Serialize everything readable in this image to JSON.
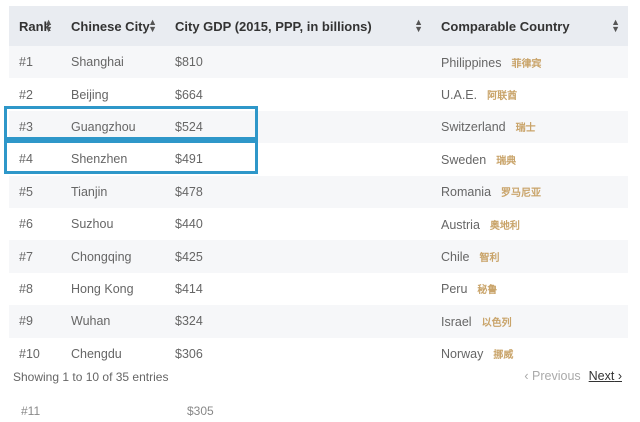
{
  "headers": {
    "rank": "Rank",
    "city": "Chinese City",
    "gdp": "City GDP (2015, PPP, in billions)",
    "country": "Comparable Country"
  },
  "rows": [
    {
      "rank": "#1",
      "city": "Shanghai",
      "gdp": "$810",
      "country": "Philippines",
      "country_cn": "菲律宾"
    },
    {
      "rank": "#2",
      "city": "Beijing",
      "gdp": "$664",
      "country": "U.A.E.",
      "country_cn": "阿联酋"
    },
    {
      "rank": "#3",
      "city": "Guangzhou",
      "gdp": "$524",
      "country": "Switzerland",
      "country_cn": "瑞士"
    },
    {
      "rank": "#4",
      "city": "Shenzhen",
      "gdp": "$491",
      "country": "Sweden",
      "country_cn": "瑞典"
    },
    {
      "rank": "#5",
      "city": "Tianjin",
      "gdp": "$478",
      "country": "Romania",
      "country_cn": "罗马尼亚"
    },
    {
      "rank": "#6",
      "city": "Suzhou",
      "gdp": "$440",
      "country": "Austria",
      "country_cn": "奥地利"
    },
    {
      "rank": "#7",
      "city": "Chongqing",
      "gdp": "$425",
      "country": "Chile",
      "country_cn": "智利"
    },
    {
      "rank": "#8",
      "city": "Hong Kong",
      "gdp": "$414",
      "country": "Peru",
      "country_cn": "秘鲁"
    },
    {
      "rank": "#9",
      "city": "Wuhan",
      "gdp": "$324",
      "country": "Israel",
      "country_cn": "以色列"
    },
    {
      "rank": "#10",
      "city": "Chengdu",
      "gdp": "$306",
      "country": "Norway",
      "country_cn": "挪威"
    }
  ],
  "info": "Showing 1 to 10 of 35 entries",
  "pagination": {
    "previous": "Previous",
    "next": "Next"
  },
  "partial_row": {
    "rank": "#11",
    "gdp": "$305"
  }
}
